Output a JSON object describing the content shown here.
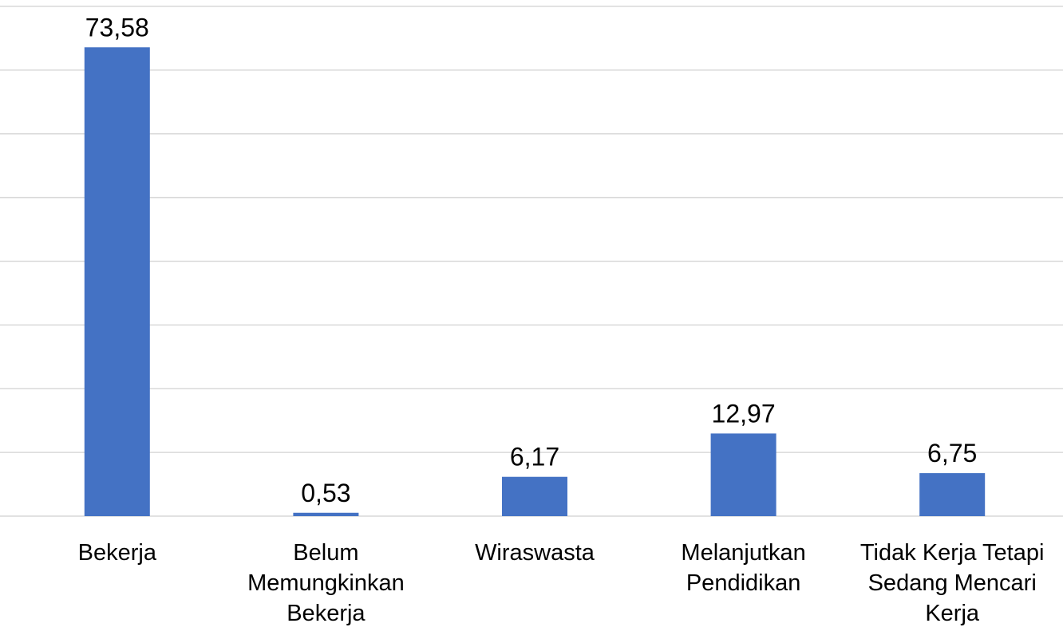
{
  "chart_data": {
    "type": "bar",
    "categories": [
      "Bekerja",
      "Belum Memungkinkan Bekerja",
      "Wiraswasta",
      "Melanjutkan Pendidikan",
      "Tidak Kerja Tetapi Sedang Mencari Kerja"
    ],
    "values": [
      73.58,
      0.53,
      6.17,
      12.97,
      6.75
    ],
    "value_labels": [
      "73,58",
      "0,53",
      "6,17",
      "12,97",
      "6,75"
    ],
    "color": "#4472c4",
    "ylim": [
      0,
      80
    ],
    "yticks": [
      0,
      10,
      20,
      30,
      40,
      50,
      60,
      70,
      80
    ],
    "grid": true
  }
}
